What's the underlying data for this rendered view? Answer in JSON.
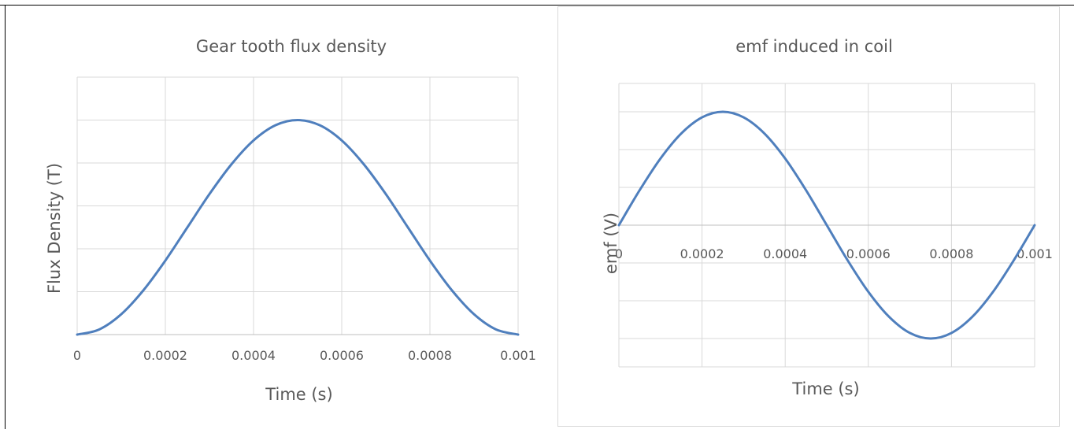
{
  "colors": {
    "line": "#4f7fbd",
    "grid": "#d9d9d9",
    "text": "#595959"
  },
  "chart_data": [
    {
      "type": "line",
      "title": "Gear tooth flux density",
      "xlabel": "Time (s)",
      "ylabel": "Flux Density (T)",
      "xlim": [
        0,
        0.001
      ],
      "ylim": [
        0,
        1.2
      ],
      "x_ticks": [
        0,
        0.0002,
        0.0004,
        0.0006,
        0.0008,
        0.001
      ],
      "x_tick_labels": [
        "0",
        "0.0002",
        "0.0004",
        "0.0006",
        "0.0008",
        "0.001"
      ],
      "y_gridlines": [
        0,
        0.2,
        0.4,
        0.6,
        0.8,
        1.0,
        1.2
      ],
      "y_tick_labels_shown": false,
      "grid": true,
      "series": [
        {
          "x": [
            0,
            5e-05,
            0.0001,
            0.00015,
            0.0002,
            0.00025,
            0.0003,
            0.00035,
            0.0004,
            0.00045,
            0.0005,
            0.00055,
            0.0006,
            0.00065,
            0.0007,
            0.00075,
            0.0008,
            0.00085,
            0.0009,
            0.00095,
            0.001
          ],
          "y": [
            0,
            0.024,
            0.095,
            0.206,
            0.345,
            0.5,
            0.655,
            0.794,
            0.905,
            0.976,
            1.0,
            0.976,
            0.905,
            0.794,
            0.655,
            0.5,
            0.345,
            0.206,
            0.095,
            0.024,
            0
          ]
        }
      ]
    },
    {
      "type": "line",
      "title": "emf induced in coil",
      "xlabel": "Time (s)",
      "ylabel": "emf (V)",
      "xlim": [
        0,
        0.001
      ],
      "ylim": [
        -1.25,
        1.25
      ],
      "x_ticks": [
        0,
        0.0002,
        0.0004,
        0.0006,
        0.0008,
        0.001
      ],
      "x_tick_labels": [
        "0",
        "0.0002",
        "0.0004",
        "0.0006",
        "0.0008",
        "0.001"
      ],
      "y_gridlines": [
        -1.0,
        -0.667,
        -0.333,
        0,
        0.333,
        0.667,
        1.0
      ],
      "y_tick_labels_shown": false,
      "grid": true,
      "series": [
        {
          "x": [
            0,
            5e-05,
            0.0001,
            0.00015,
            0.0002,
            0.00025,
            0.0003,
            0.00035,
            0.0004,
            0.00045,
            0.0005,
            0.00055,
            0.0006,
            0.00065,
            0.0007,
            0.00075,
            0.0008,
            0.00085,
            0.0009,
            0.00095,
            0.001
          ],
          "y": [
            0,
            0.309,
            0.588,
            0.809,
            0.951,
            1.0,
            0.951,
            0.809,
            0.588,
            0.309,
            0,
            -0.309,
            -0.588,
            -0.809,
            -0.951,
            -1.0,
            -0.951,
            -0.809,
            -0.588,
            -0.309,
            0
          ]
        }
      ]
    }
  ]
}
